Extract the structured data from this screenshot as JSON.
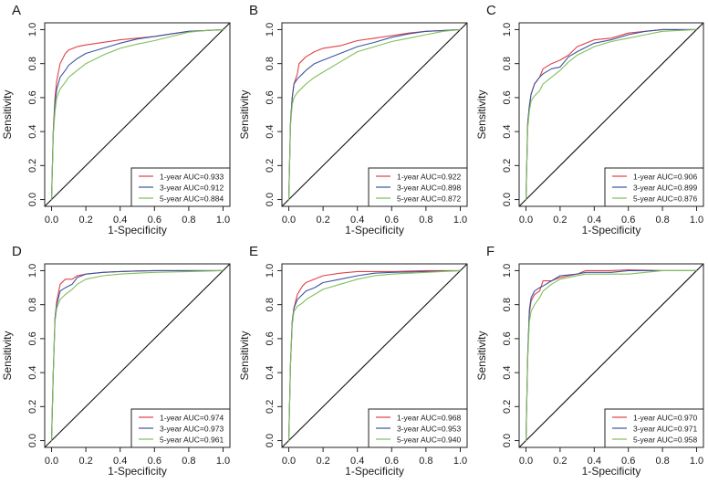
{
  "figure": {
    "colors": {
      "1-year": "#e04048",
      "3-year": "#3b55a0",
      "5-year": "#7fbf5a",
      "axis": "#222222",
      "diagonal": "#111111"
    }
  },
  "chart_data": [
    {
      "type": "line",
      "panel_label": "A",
      "xlabel": "1-Specificity",
      "ylabel": "Sensitivity",
      "xlim": [
        0,
        1
      ],
      "ylim": [
        0,
        1
      ],
      "xticks": [
        "0.0",
        "0.2",
        "0.4",
        "0.6",
        "0.8",
        "1.0"
      ],
      "yticks": [
        "0.0",
        "0.2",
        "0.4",
        "0.6",
        "0.8",
        "1.0"
      ],
      "diagonal": true,
      "legend_position": "bottom-right",
      "series": [
        {
          "name": "1-year",
          "label": "1-year AUC=0.933",
          "auc": 0.933,
          "x": [
            0,
            0.01,
            0.02,
            0.03,
            0.05,
            0.08,
            0.1,
            0.15,
            0.2,
            0.3,
            0.4,
            0.5,
            0.6,
            0.7,
            0.8,
            0.9,
            1.0
          ],
          "y": [
            0,
            0.4,
            0.6,
            0.7,
            0.8,
            0.86,
            0.88,
            0.9,
            0.91,
            0.925,
            0.94,
            0.95,
            0.96,
            0.975,
            0.99,
            0.995,
            1.0
          ]
        },
        {
          "name": "3-year",
          "label": "3-year AUC=0.912",
          "auc": 0.912,
          "x": [
            0,
            0.01,
            0.02,
            0.03,
            0.05,
            0.08,
            0.1,
            0.15,
            0.2,
            0.3,
            0.4,
            0.5,
            0.6,
            0.7,
            0.8,
            0.9,
            1.0
          ],
          "y": [
            0,
            0.4,
            0.57,
            0.65,
            0.72,
            0.76,
            0.79,
            0.83,
            0.86,
            0.89,
            0.92,
            0.945,
            0.96,
            0.975,
            0.99,
            0.995,
            1.0
          ]
        },
        {
          "name": "5-year",
          "label": "5-year AUC=0.884",
          "auc": 0.884,
          "x": [
            0,
            0.01,
            0.02,
            0.03,
            0.05,
            0.08,
            0.1,
            0.15,
            0.2,
            0.3,
            0.4,
            0.5,
            0.6,
            0.7,
            0.8,
            0.9,
            1.0
          ],
          "y": [
            0,
            0.38,
            0.52,
            0.6,
            0.65,
            0.69,
            0.72,
            0.76,
            0.8,
            0.85,
            0.89,
            0.915,
            0.935,
            0.96,
            0.985,
            0.995,
            1.0
          ]
        }
      ]
    },
    {
      "type": "line",
      "panel_label": "B",
      "xlabel": "1-Specificity",
      "ylabel": "Sensitivity",
      "xlim": [
        0,
        1
      ],
      "ylim": [
        0,
        1
      ],
      "xticks": [
        "0.0",
        "0.2",
        "0.4",
        "0.6",
        "0.8",
        "1.0"
      ],
      "yticks": [
        "0.0",
        "0.2",
        "0.4",
        "0.6",
        "0.8",
        "1.0"
      ],
      "diagonal": true,
      "legend_position": "bottom-right",
      "series": [
        {
          "name": "1-year",
          "label": "1-year AUC=0.922",
          "auc": 0.922,
          "x": [
            0,
            0.01,
            0.02,
            0.03,
            0.05,
            0.06,
            0.1,
            0.15,
            0.2,
            0.3,
            0.4,
            0.5,
            0.6,
            0.7,
            0.8,
            0.9,
            1.0
          ],
          "y": [
            0,
            0.45,
            0.6,
            0.68,
            0.74,
            0.8,
            0.84,
            0.87,
            0.89,
            0.905,
            0.935,
            0.95,
            0.965,
            0.98,
            0.99,
            0.995,
            1.0
          ]
        },
        {
          "name": "3-year",
          "label": "3-year AUC=0.898",
          "auc": 0.898,
          "x": [
            0,
            0.01,
            0.02,
            0.03,
            0.05,
            0.08,
            0.1,
            0.15,
            0.2,
            0.3,
            0.4,
            0.5,
            0.6,
            0.7,
            0.8,
            0.9,
            1.0
          ],
          "y": [
            0,
            0.45,
            0.6,
            0.68,
            0.71,
            0.74,
            0.76,
            0.8,
            0.82,
            0.86,
            0.9,
            0.925,
            0.955,
            0.975,
            0.99,
            0.995,
            1.0
          ]
        },
        {
          "name": "5-year",
          "label": "5-year AUC=0.872",
          "auc": 0.872,
          "x": [
            0,
            0.01,
            0.02,
            0.03,
            0.05,
            0.08,
            0.1,
            0.15,
            0.2,
            0.3,
            0.4,
            0.5,
            0.6,
            0.7,
            0.8,
            0.9,
            1.0
          ],
          "y": [
            0,
            0.43,
            0.56,
            0.6,
            0.63,
            0.66,
            0.68,
            0.72,
            0.75,
            0.81,
            0.87,
            0.9,
            0.93,
            0.95,
            0.97,
            0.99,
            1.0
          ]
        }
      ]
    },
    {
      "type": "line",
      "panel_label": "C",
      "xlabel": "1-Specificity",
      "ylabel": "Sensitivity",
      "xlim": [
        0,
        1
      ],
      "ylim": [
        0,
        1
      ],
      "xticks": [
        "0.0",
        "0.2",
        "0.4",
        "0.6",
        "0.8",
        "1.0"
      ],
      "yticks": [
        "0.0",
        "0.2",
        "0.4",
        "0.6",
        "0.8",
        "1.0"
      ],
      "diagonal": true,
      "legend_position": "bottom-right",
      "series": [
        {
          "name": "1-year",
          "label": "1-year AUC=0.906",
          "auc": 0.906,
          "x": [
            0,
            0.01,
            0.02,
            0.03,
            0.05,
            0.08,
            0.1,
            0.15,
            0.2,
            0.25,
            0.3,
            0.4,
            0.5,
            0.6,
            0.7,
            0.8,
            1.0
          ],
          "y": [
            0,
            0.45,
            0.55,
            0.62,
            0.68,
            0.72,
            0.77,
            0.8,
            0.82,
            0.85,
            0.9,
            0.94,
            0.95,
            0.98,
            0.99,
            1.0,
            1.0
          ]
        },
        {
          "name": "3-year",
          "label": "3-year AUC=0.899",
          "auc": 0.899,
          "x": [
            0,
            0.01,
            0.02,
            0.03,
            0.05,
            0.08,
            0.1,
            0.15,
            0.2,
            0.25,
            0.3,
            0.4,
            0.5,
            0.6,
            0.7,
            0.8,
            1.0
          ],
          "y": [
            0,
            0.45,
            0.55,
            0.62,
            0.68,
            0.72,
            0.74,
            0.77,
            0.78,
            0.84,
            0.87,
            0.92,
            0.94,
            0.97,
            0.99,
            1.0,
            1.0
          ]
        },
        {
          "name": "5-year",
          "label": "5-year AUC=0.876",
          "auc": 0.876,
          "x": [
            0,
            0.01,
            0.02,
            0.03,
            0.05,
            0.08,
            0.1,
            0.15,
            0.2,
            0.25,
            0.3,
            0.4,
            0.5,
            0.6,
            0.7,
            0.8,
            1.0
          ],
          "y": [
            0,
            0.42,
            0.52,
            0.58,
            0.61,
            0.64,
            0.68,
            0.72,
            0.76,
            0.81,
            0.85,
            0.9,
            0.93,
            0.95,
            0.97,
            0.99,
            1.0
          ]
        }
      ]
    },
    {
      "type": "line",
      "panel_label": "D",
      "xlabel": "1-Specificity",
      "ylabel": "Sensitivity",
      "xlim": [
        0,
        1
      ],
      "ylim": [
        0,
        1
      ],
      "xticks": [
        "0.0",
        "0.2",
        "0.4",
        "0.6",
        "0.8",
        "1.0"
      ],
      "yticks": [
        "0.0",
        "0.2",
        "0.4",
        "0.6",
        "0.8",
        "1.0"
      ],
      "diagonal": true,
      "legend_position": "bottom-right",
      "series": [
        {
          "name": "1-year",
          "label": "1-year AUC=0.974",
          "auc": 0.974,
          "x": [
            0,
            0.01,
            0.02,
            0.03,
            0.05,
            0.08,
            0.12,
            0.15,
            0.2,
            0.3,
            0.4,
            0.5,
            0.6,
            0.8,
            1.0
          ],
          "y": [
            0,
            0.4,
            0.72,
            0.82,
            0.92,
            0.95,
            0.95,
            0.97,
            0.98,
            0.99,
            0.995,
            0.998,
            1.0,
            1.0,
            1.0
          ]
        },
        {
          "name": "3-year",
          "label": "3-year AUC=0.973",
          "auc": 0.973,
          "x": [
            0,
            0.01,
            0.02,
            0.03,
            0.05,
            0.08,
            0.12,
            0.15,
            0.2,
            0.3,
            0.4,
            0.5,
            0.6,
            0.8,
            1.0
          ],
          "y": [
            0,
            0.4,
            0.72,
            0.8,
            0.88,
            0.9,
            0.92,
            0.96,
            0.98,
            0.99,
            0.995,
            0.998,
            1.0,
            1.0,
            1.0
          ]
        },
        {
          "name": "5-year",
          "label": "5-year AUC=0.961",
          "auc": 0.961,
          "x": [
            0,
            0.01,
            0.02,
            0.03,
            0.05,
            0.08,
            0.12,
            0.15,
            0.2,
            0.3,
            0.4,
            0.5,
            0.6,
            0.8,
            1.0
          ],
          "y": [
            0,
            0.4,
            0.7,
            0.78,
            0.83,
            0.86,
            0.89,
            0.92,
            0.95,
            0.97,
            0.98,
            0.985,
            0.99,
            0.995,
            1.0
          ]
        }
      ]
    },
    {
      "type": "line",
      "panel_label": "E",
      "xlabel": "1-Specificity",
      "ylabel": "Sensitivity",
      "xlim": [
        0,
        1
      ],
      "ylim": [
        0,
        1
      ],
      "xticks": [
        "0.0",
        "0.2",
        "0.4",
        "0.6",
        "0.8",
        "1.0"
      ],
      "yticks": [
        "0.0",
        "0.2",
        "0.4",
        "0.6",
        "0.8",
        "1.0"
      ],
      "diagonal": true,
      "legend_position": "bottom-right",
      "series": [
        {
          "name": "1-year",
          "label": "1-year AUC=0.968",
          "auc": 0.968,
          "x": [
            0,
            0.01,
            0.02,
            0.03,
            0.05,
            0.08,
            0.1,
            0.15,
            0.2,
            0.3,
            0.4,
            0.5,
            0.6,
            0.8,
            1.0
          ],
          "y": [
            0,
            0.45,
            0.7,
            0.78,
            0.86,
            0.91,
            0.93,
            0.95,
            0.97,
            0.985,
            0.995,
            0.995,
            0.995,
            1.0,
            1.0
          ]
        },
        {
          "name": "3-year",
          "label": "3-year AUC=0.953",
          "auc": 0.953,
          "x": [
            0,
            0.01,
            0.02,
            0.03,
            0.05,
            0.08,
            0.1,
            0.15,
            0.2,
            0.3,
            0.4,
            0.5,
            0.6,
            0.8,
            1.0
          ],
          "y": [
            0,
            0.45,
            0.7,
            0.78,
            0.83,
            0.86,
            0.88,
            0.9,
            0.93,
            0.95,
            0.97,
            0.985,
            0.99,
            0.995,
            1.0
          ]
        },
        {
          "name": "5-year",
          "label": "5-year AUC=0.940",
          "auc": 0.94,
          "x": [
            0,
            0.01,
            0.02,
            0.03,
            0.05,
            0.08,
            0.1,
            0.15,
            0.2,
            0.3,
            0.4,
            0.5,
            0.6,
            0.8,
            1.0
          ],
          "y": [
            0,
            0.44,
            0.68,
            0.76,
            0.79,
            0.81,
            0.83,
            0.86,
            0.89,
            0.92,
            0.95,
            0.97,
            0.98,
            0.99,
            1.0
          ]
        }
      ]
    },
    {
      "type": "line",
      "panel_label": "F",
      "xlabel": "1-Specificity",
      "ylabel": "Sensitivity",
      "xlim": [
        0,
        1
      ],
      "ylim": [
        0,
        1
      ],
      "xticks": [
        "0.0",
        "0.2",
        "0.4",
        "0.6",
        "0.8",
        "1.0"
      ],
      "yticks": [
        "0.0",
        "0.2",
        "0.4",
        "0.6",
        "0.8",
        "1.0"
      ],
      "diagonal": true,
      "legend_position": "bottom-right",
      "series": [
        {
          "name": "1-year",
          "label": "1-year AUC=0.970",
          "auc": 0.97,
          "x": [
            0,
            0.01,
            0.02,
            0.03,
            0.05,
            0.08,
            0.1,
            0.15,
            0.2,
            0.3,
            0.35,
            0.5,
            0.6,
            0.8,
            1.0
          ],
          "y": [
            0,
            0.5,
            0.75,
            0.82,
            0.86,
            0.88,
            0.94,
            0.94,
            0.96,
            0.98,
            1.0,
            1.0,
            1.01,
            1.0,
            1.0
          ]
        },
        {
          "name": "3-year",
          "label": "3-year AUC=0.971",
          "auc": 0.971,
          "x": [
            0,
            0.01,
            0.02,
            0.03,
            0.05,
            0.08,
            0.1,
            0.15,
            0.2,
            0.3,
            0.35,
            0.5,
            0.6,
            0.8,
            1.0
          ],
          "y": [
            0,
            0.5,
            0.77,
            0.84,
            0.88,
            0.9,
            0.91,
            0.94,
            0.97,
            0.98,
            0.99,
            0.99,
            1.0,
            1.0,
            1.0
          ]
        },
        {
          "name": "5-year",
          "label": "5-year AUC=0.958",
          "auc": 0.958,
          "x": [
            0,
            0.01,
            0.02,
            0.03,
            0.05,
            0.08,
            0.1,
            0.15,
            0.2,
            0.3,
            0.35,
            0.5,
            0.6,
            0.8,
            1.0
          ],
          "y": [
            0,
            0.48,
            0.7,
            0.76,
            0.8,
            0.84,
            0.88,
            0.92,
            0.95,
            0.97,
            0.98,
            0.98,
            0.98,
            1.0,
            1.0
          ]
        }
      ]
    }
  ]
}
